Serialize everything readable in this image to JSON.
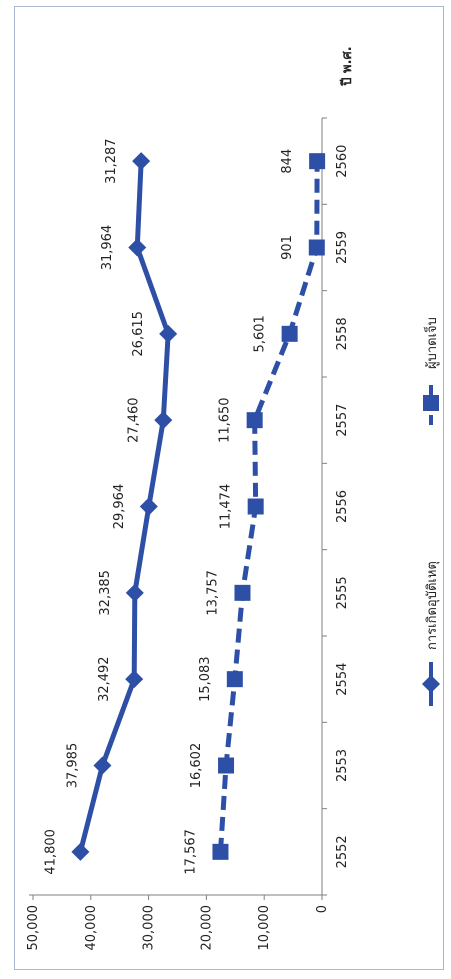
{
  "chart_data": {
    "type": "line",
    "orientation": "rotated-90-clockwise",
    "categories": [
      "2552",
      "2553",
      "2554",
      "2555",
      "2556",
      "2557",
      "2558",
      "2559",
      "2560"
    ],
    "series": [
      {
        "name": "การเกิดอุบัติเหตุ",
        "marker": "diamond",
        "line_style": "solid",
        "values": [
          41800,
          37985,
          32492,
          32385,
          29964,
          27460,
          26615,
          31964,
          31287
        ],
        "labels": [
          "41,800",
          "37,985",
          "32,492",
          "32,385",
          "29,964",
          "27,460",
          "26,615",
          "31,964",
          "31,287"
        ]
      },
      {
        "name": "ผู้บาดเจ็บ",
        "marker": "square",
        "line_style": "dashed",
        "values": [
          17567,
          16602,
          15083,
          13757,
          11474,
          11650,
          5601,
          901,
          844
        ],
        "labels": [
          "17,567",
          "16,602",
          "15,083",
          "13,757",
          "11,474",
          "11,650",
          "5,601",
          "901",
          "844"
        ]
      }
    ],
    "xlabel": "ปี พ.ศ.",
    "ylabel": "",
    "ylim": [
      0,
      50000
    ],
    "yticks": [
      "0",
      "10,000",
      "20,000",
      "30,000",
      "40,000",
      "50,000"
    ],
    "grid": false,
    "legend_position": "right",
    "series_color": "#2d4fa6"
  }
}
